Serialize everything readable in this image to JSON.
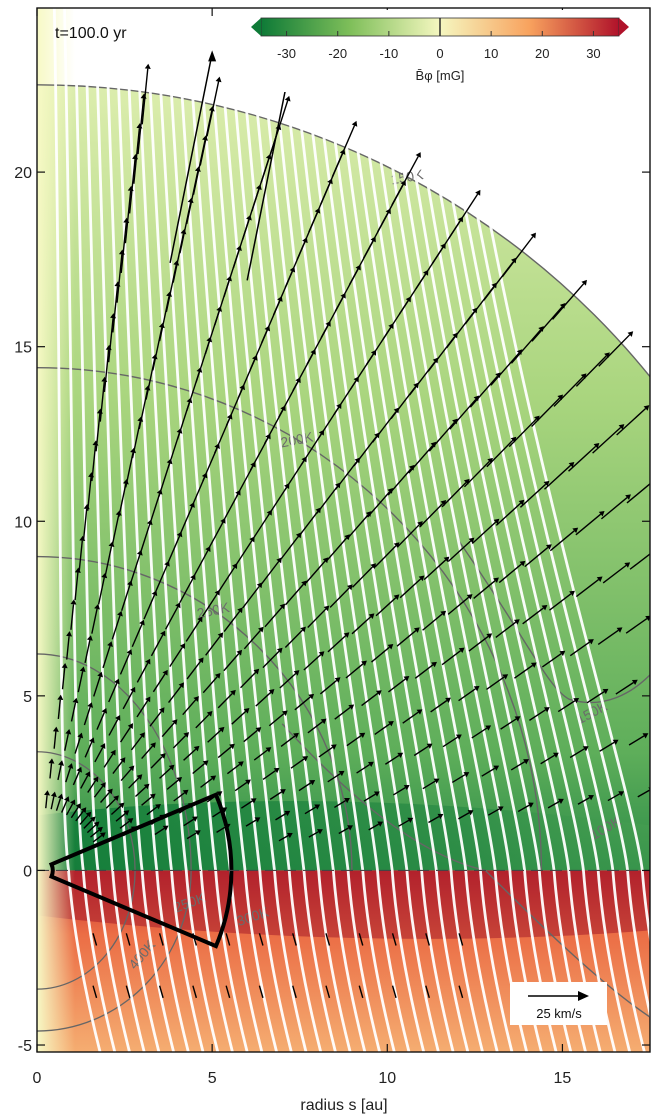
{
  "time_label": "t=100.0 yr",
  "chart_data": {
    "type": "heatmap",
    "xlabel": "radius  s [au]",
    "ylabel": "",
    "xlim": [
      0,
      17.5
    ],
    "ylim": [
      -5.2,
      24.7
    ],
    "xticks": [
      0,
      5,
      10,
      15
    ],
    "yticks": [
      -5,
      0,
      5,
      10,
      15,
      20
    ],
    "colorbar": {
      "label": "B̄φ [mG]",
      "range": [
        -35,
        35
      ],
      "ticks": [
        -30,
        -20,
        -10,
        0,
        10,
        20,
        30
      ],
      "colors": [
        "#0e7a37",
        "#7fbf5a",
        "#f5f7c0",
        "#f8a25e",
        "#b0122a"
      ]
    },
    "temperature_contours": [
      {
        "label": "150K",
        "radius": 22.5
      },
      {
        "label": "200K",
        "radius": 14.4
      },
      {
        "label": "250K",
        "radius": 8.99
      },
      {
        "label": "150K",
        "radius": 0
      },
      {
        "label": "100K",
        "radius": 0
      },
      {
        "label": "250K",
        "radius": 0
      },
      {
        "label": "300K",
        "radius": 0
      },
      {
        "label": "400K",
        "radius": 0
      }
    ],
    "velocity_scale": {
      "label": "25 km/s",
      "value": 25
    },
    "outflow_arrow_tips": [
      [
        5.0,
        23.4
      ],
      [
        7.2,
        22.9
      ]
    ],
    "wedge": {
      "inner_radius": 0.45,
      "outer_radius": 5.55,
      "half_angle_deg": 23
    },
    "midplane_y": 0
  }
}
